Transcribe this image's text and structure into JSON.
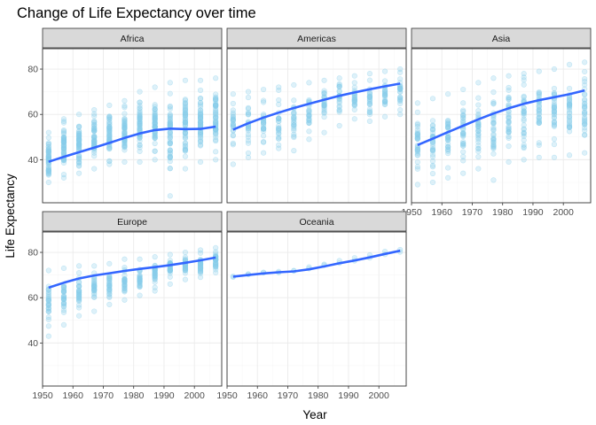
{
  "chart_data": {
    "type": "scatter",
    "title": "Change of Life Expectancy over time",
    "xlabel": "Year",
    "ylabel": "Life Expectancy",
    "xlim": [
      1950,
      2009
    ],
    "ylim": [
      21,
      89
    ],
    "x_ticks": [
      1950,
      1960,
      1970,
      1980,
      1990,
      2000
    ],
    "y_ticks": [
      40,
      60,
      80
    ],
    "years": [
      1952,
      1957,
      1962,
      1967,
      1972,
      1977,
      1982,
      1987,
      1992,
      1997,
      2002,
      2007
    ],
    "grid": true,
    "point_color": "#87ceeb",
    "smooth_color": "#3366ff",
    "facets": [
      {
        "name": "Africa",
        "point_count_per_year": 52,
        "y_min": [
          30,
          32,
          34,
          36,
          38,
          39,
          39,
          40,
          24,
          36,
          39,
          40
        ],
        "y_max": [
          52,
          58,
          60,
          62,
          64,
          66,
          70,
          72,
          74,
          75,
          75,
          76
        ],
        "smooth": [
          [
            1952,
            39.1
          ],
          [
            1957,
            41.3
          ],
          [
            1962,
            43.3
          ],
          [
            1967,
            45.3
          ],
          [
            1972,
            47.4
          ],
          [
            1977,
            49.6
          ],
          [
            1982,
            51.6
          ],
          [
            1987,
            53.1
          ],
          [
            1992,
            53.7
          ],
          [
            1997,
            53.5
          ],
          [
            2002,
            53.6
          ],
          [
            2007,
            54.6
          ]
        ]
      },
      {
        "name": "Americas",
        "point_count_per_year": 25,
        "y_min": [
          38,
          41,
          43,
          45,
          44,
          49,
          52,
          55,
          58,
          57,
          59,
          60
        ],
        "y_max": [
          69,
          70,
          71,
          72,
          73,
          74,
          75,
          76,
          77,
          78,
          79,
          80
        ],
        "smooth": [
          [
            1952,
            53.3
          ],
          [
            1957,
            56.1
          ],
          [
            1962,
            58.6
          ],
          [
            1967,
            60.8
          ],
          [
            1972,
            62.8
          ],
          [
            1977,
            64.7
          ],
          [
            1982,
            66.5
          ],
          [
            1987,
            68.2
          ],
          [
            1992,
            69.7
          ],
          [
            1997,
            71.1
          ],
          [
            2002,
            72.4
          ],
          [
            2007,
            73.6
          ]
        ]
      },
      {
        "name": "Asia",
        "point_count_per_year": 33,
        "y_min": [
          29,
          30,
          32,
          34,
          36,
          31,
          39,
          40,
          41,
          41,
          42,
          43
        ],
        "y_max": [
          65,
          67,
          69,
          71,
          74,
          76,
          77,
          78,
          79,
          80,
          82,
          83
        ],
        "smooth": [
          [
            1952,
            46.5
          ],
          [
            1957,
            49.3
          ],
          [
            1962,
            52.2
          ],
          [
            1967,
            55.0
          ],
          [
            1972,
            57.8
          ],
          [
            1977,
            60.4
          ],
          [
            1982,
            62.7
          ],
          [
            1987,
            64.7
          ],
          [
            1992,
            66.3
          ],
          [
            1997,
            67.6
          ],
          [
            2002,
            68.9
          ],
          [
            2007,
            70.6
          ]
        ]
      },
      {
        "name": "Europe",
        "point_count_per_year": 30,
        "y_min": [
          43,
          48,
          52,
          54,
          57,
          59,
          61,
          63,
          66,
          68,
          69,
          71
        ],
        "y_max": [
          72,
          73,
          74,
          74,
          75,
          77,
          77,
          78,
          79,
          80,
          81,
          82
        ],
        "smooth": [
          [
            1952,
            64.4
          ],
          [
            1957,
            66.6
          ],
          [
            1962,
            68.5
          ],
          [
            1967,
            69.8
          ],
          [
            1972,
            70.8
          ],
          [
            1977,
            71.8
          ],
          [
            1982,
            72.7
          ],
          [
            1987,
            73.5
          ],
          [
            1992,
            74.4
          ],
          [
            1997,
            75.4
          ],
          [
            2002,
            76.5
          ],
          [
            2007,
            77.7
          ]
        ]
      },
      {
        "name": "Oceania",
        "point_count_per_year": 2,
        "y_min": [
          69.1,
          70.3,
          71.0,
          71.1,
          71.9,
          72.8,
          74.3,
          75.3,
          76.3,
          77.6,
          79.1,
          80.2
        ],
        "y_max": [
          69.4,
          70.4,
          71.2,
          71.5,
          71.9,
          73.5,
          74.7,
          76.3,
          77.6,
          78.8,
          80.4,
          81.2
        ],
        "smooth": [
          [
            1952,
            69.3
          ],
          [
            1957,
            70.0
          ],
          [
            1962,
            70.7
          ],
          [
            1967,
            71.2
          ],
          [
            1972,
            71.6
          ],
          [
            1977,
            72.5
          ],
          [
            1982,
            73.8
          ],
          [
            1987,
            75.2
          ],
          [
            1992,
            76.4
          ],
          [
            1997,
            77.8
          ],
          [
            2002,
            79.3
          ],
          [
            2007,
            80.7
          ]
        ]
      }
    ]
  }
}
